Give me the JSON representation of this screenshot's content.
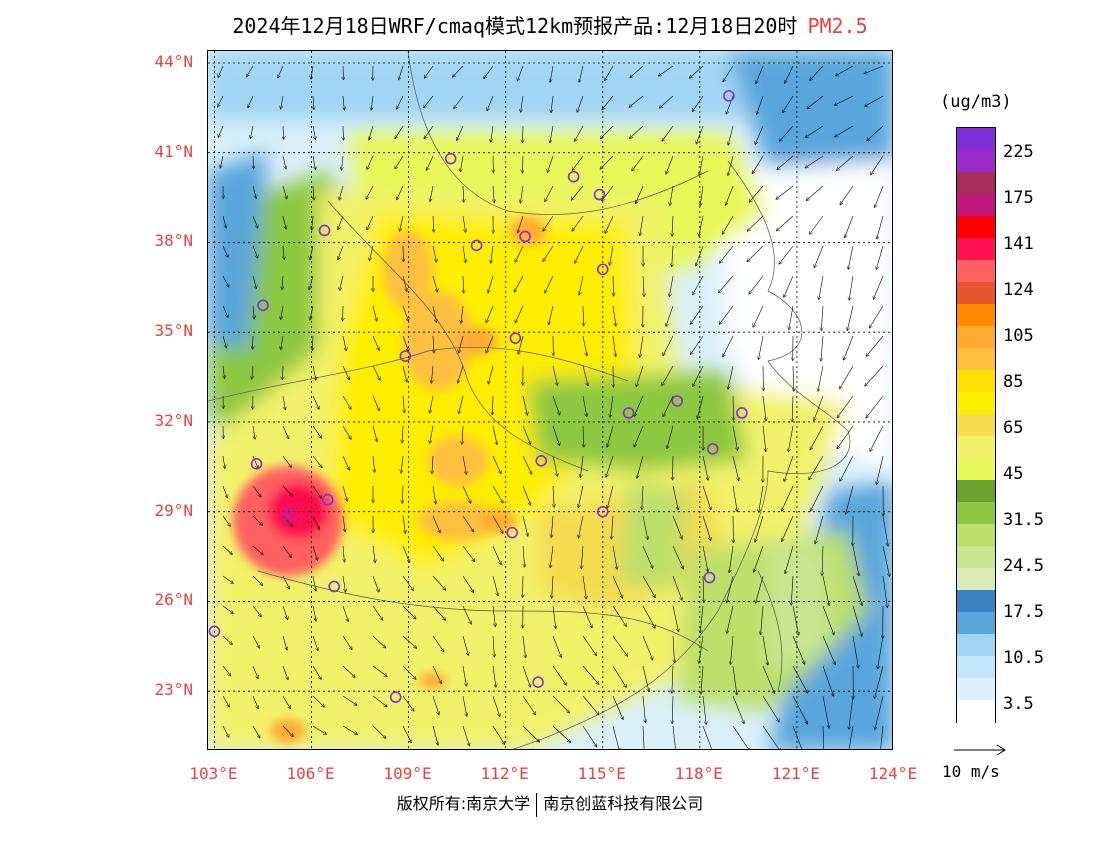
{
  "title": {
    "main": "2024年12月18日WRF/cmaq模式12km预报产品:12月18日20时",
    "pollutant": "PM2.5"
  },
  "map": {
    "lat_labels": [
      "44°N",
      "41°N",
      "38°N",
      "35°N",
      "32°N",
      "29°N",
      "26°N",
      "23°N"
    ],
    "lat_values": [
      44,
      41,
      38,
      35,
      32,
      29,
      26,
      23
    ],
    "lon_labels": [
      "103°E",
      "106°E",
      "109°E",
      "112°E",
      "115°E",
      "118°E",
      "121°E",
      "124°E"
    ],
    "lon_values": [
      103,
      106,
      109,
      112,
      115,
      118,
      121,
      124
    ],
    "extent": {
      "lon_min": 102.8,
      "lon_max": 124.0,
      "lat_min": 21.0,
      "lat_max": 44.4
    },
    "stations": [
      [
        118.9,
        42.9
      ],
      [
        110.3,
        40.8
      ],
      [
        114.1,
        40.2
      ],
      [
        114.9,
        39.6
      ],
      [
        106.4,
        38.4
      ],
      [
        111.1,
        37.9
      ],
      [
        112.6,
        38.2
      ],
      [
        115.0,
        37.1
      ],
      [
        104.5,
        35.9
      ],
      [
        112.3,
        34.8
      ],
      [
        108.9,
        34.2
      ],
      [
        115.8,
        32.3
      ],
      [
        117.3,
        32.7
      ],
      [
        119.3,
        32.3
      ],
      [
        118.4,
        31.1
      ],
      [
        113.1,
        30.7
      ],
      [
        104.3,
        30.6
      ],
      [
        106.5,
        29.4
      ],
      [
        115.0,
        29.0
      ],
      [
        112.2,
        28.3
      ],
      [
        106.7,
        26.5
      ],
      [
        103.0,
        25.0
      ],
      [
        118.3,
        26.8
      ],
      [
        108.6,
        22.8
      ],
      [
        113.0,
        23.3
      ],
      [
        105.3,
        28.9
      ]
    ]
  },
  "colorbar": {
    "unit": "(ug/m3)",
    "colors": [
      "#7d2ed8",
      "#9b2bc8",
      "#a82e5a",
      "#c0157a",
      "#ff0000",
      "#ff1050",
      "#ff6060",
      "#e8552e",
      "#ff8a00",
      "#ffaa30",
      "#ffc040",
      "#ffe000",
      "#ffee00",
      "#f5dc50",
      "#f2f26a",
      "#e8f858",
      "#6aa02e",
      "#8cc840",
      "#bce06a",
      "#c8e690",
      "#d8ecb8",
      "#3a82c4",
      "#5aa6dc",
      "#a0d6f4",
      "#c2e6f8",
      "#daf0fa",
      "#ffffff"
    ],
    "labels": [
      "225",
      "175",
      "141",
      "124",
      "105",
      "85",
      "65",
      "45",
      "31.5",
      "24.5",
      "17.5",
      "10.5",
      "3.5"
    ]
  },
  "vector_ref": {
    "label": "10 m/s"
  },
  "copyright": {
    "left": "版权所有:南京大学",
    "right": "南京创蓝科技有限公司"
  }
}
